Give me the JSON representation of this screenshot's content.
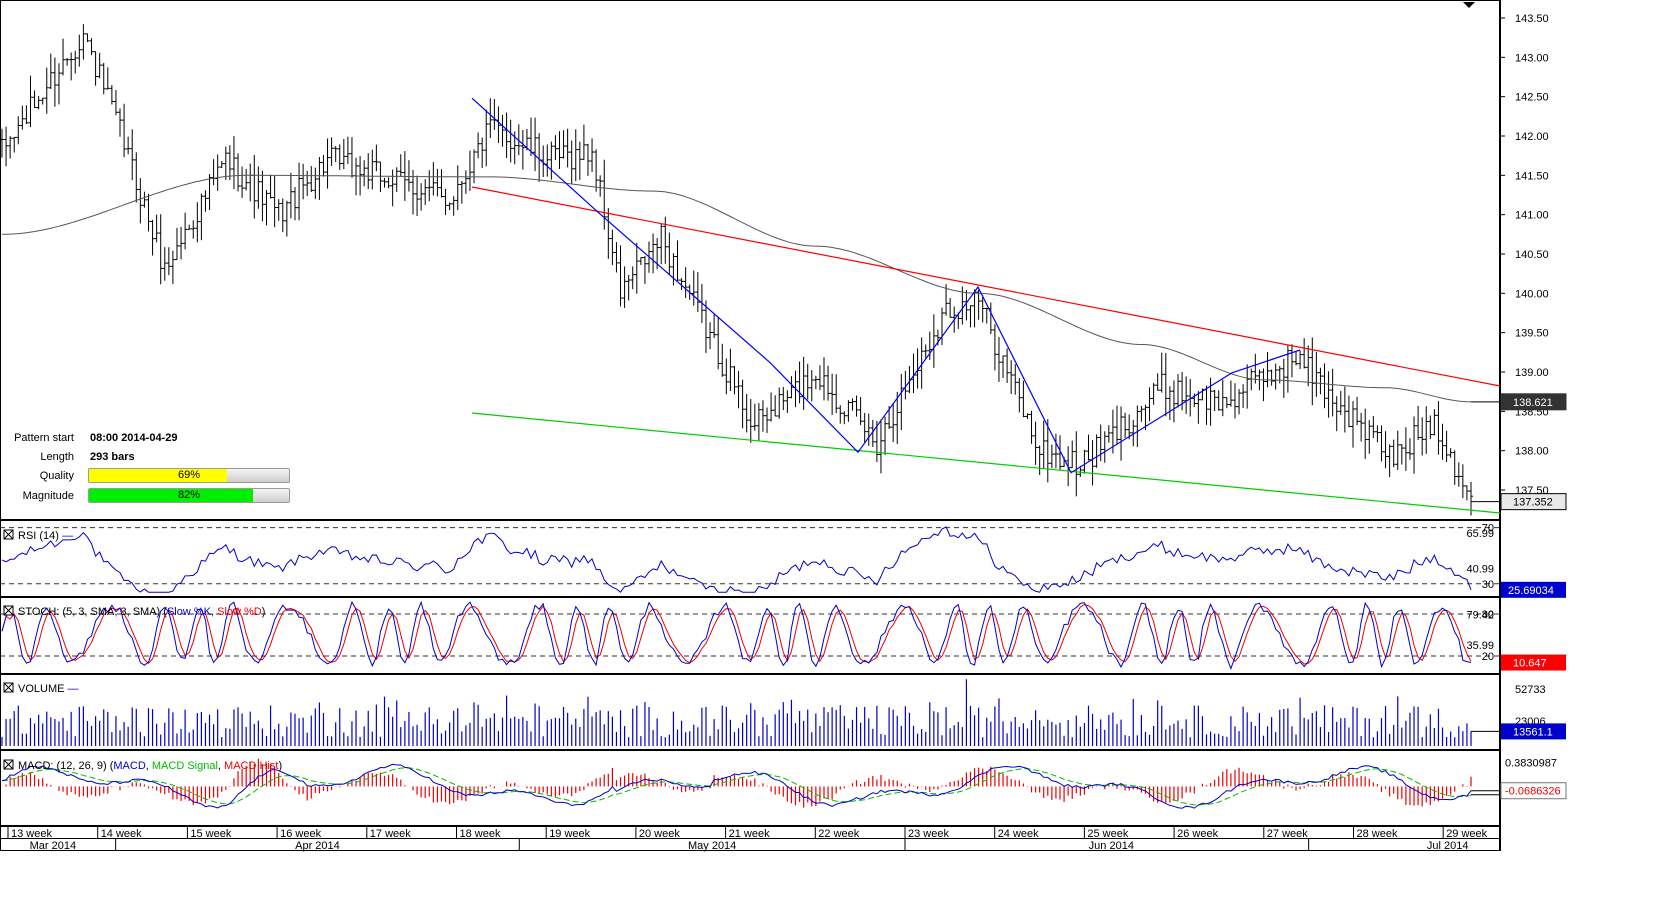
{
  "pattern_info": {
    "rows": [
      {
        "label": "Pattern start",
        "value": "08:00 2014-04-29"
      },
      {
        "label": "Length",
        "value": "293 bars"
      }
    ],
    "quality": {
      "label": "Quality",
      "text": "69%",
      "value": 0.69,
      "color": "#ffff00"
    },
    "magnitude": {
      "label": "Magnitude",
      "text": "82%",
      "value": 0.82,
      "color": "#00ee00"
    }
  },
  "chart_data": [
    {
      "type": "ohlc",
      "panel": "price",
      "y_ticks": [
        "143.50",
        "143.00",
        "142.50",
        "142.00",
        "141.50",
        "141.00",
        "140.50",
        "140.00",
        "139.50",
        "139.00",
        "138.50",
        "138.00",
        "137.50"
      ],
      "ylim": [
        137.2,
        143.7
      ],
      "last_price": {
        "text": "137.352",
        "value": 137.352
      },
      "ma_label": {
        "text": "138.621",
        "value": 138.621
      },
      "moving_average_color": "#555555",
      "channel_upper": {
        "color": "#ff0000",
        "points": [
          [
            0,
            141.33
          ],
          [
            1,
            138.8
          ]
        ]
      },
      "channel_lower": {
        "color": "#00cc00",
        "points": [
          [
            0,
            138.5
          ],
          [
            1,
            137.05
          ]
        ]
      },
      "zigzag": {
        "color": "#0000ff",
        "points": [
          [
            "2014-04-29",
            142.48
          ],
          [
            "2014-05-08",
            141.02
          ],
          [
            "2014-05-13",
            139.12
          ],
          [
            "2014-05-19",
            137.98
          ],
          [
            "2014-05-26",
            140.08
          ],
          [
            "2014-05-31",
            137.72
          ],
          [
            "2014-06-12",
            138.99
          ],
          [
            "2014-06-19",
            139.28
          ]
        ]
      },
      "anchors": [
        {
          "bar": 0,
          "close": 141.8
        },
        {
          "bar": 20,
          "close": 143.3
        },
        {
          "bar": 30,
          "close": 141.9
        },
        {
          "bar": 40,
          "close": 140.3
        },
        {
          "bar": 55,
          "close": 141.7
        },
        {
          "bar": 68,
          "close": 141.0
        },
        {
          "bar": 80,
          "close": 141.7
        },
        {
          "bar": 98,
          "close": 141.4
        },
        {
          "bar": 110,
          "close": 141.2
        },
        {
          "bar": 120,
          "close": 142.1
        },
        {
          "bar": 135,
          "close": 141.7
        },
        {
          "bar": 145,
          "close": 141.8
        },
        {
          "bar": 152,
          "close": 140.0
        },
        {
          "bar": 162,
          "close": 140.7
        },
        {
          "bar": 185,
          "close": 138.3
        },
        {
          "bar": 200,
          "close": 139.0
        },
        {
          "bar": 215,
          "close": 138.1
        },
        {
          "bar": 232,
          "close": 139.8
        },
        {
          "bar": 240,
          "close": 139.9
        },
        {
          "bar": 255,
          "close": 138.0
        },
        {
          "bar": 265,
          "close": 137.8
        },
        {
          "bar": 285,
          "close": 138.8
        },
        {
          "bar": 300,
          "close": 138.6
        },
        {
          "bar": 318,
          "close": 139.2
        },
        {
          "bar": 330,
          "close": 138.5
        },
        {
          "bar": 342,
          "close": 137.9
        },
        {
          "bar": 352,
          "close": 138.4
        },
        {
          "bar": 361,
          "close": 137.4
        }
      ],
      "ma_points": [
        [
          0,
          140.75
        ],
        [
          60,
          141.5
        ],
        [
          120,
          141.48
        ],
        [
          160,
          141.3
        ],
        [
          200,
          140.6
        ],
        [
          240,
          140.0
        ],
        [
          280,
          139.35
        ],
        [
          310,
          138.9
        ],
        [
          340,
          138.8
        ],
        [
          361,
          138.62
        ]
      ]
    },
    {
      "type": "line",
      "panel": "rsi",
      "title": "RSI (14)",
      "y_ticks": [
        "70",
        "65.99",
        "40.99",
        "30"
      ],
      "ylim": [
        22,
        74
      ],
      "levels": [
        70,
        30
      ],
      "last": {
        "text": "25.69034",
        "value": 25.69034
      },
      "series": [
        {
          "name": "RSI",
          "color": "#0000cc"
        }
      ]
    },
    {
      "type": "line",
      "panel": "stoch",
      "title": "STOCH: (5, 3, SMA, 3, SMA)",
      "y_ticks": [
        "80",
        "79.42",
        "35.99",
        "20"
      ],
      "ylim": [
        0,
        100
      ],
      "levels": [
        80,
        20
      ],
      "last": {
        "text": "10.647",
        "value": 10.647
      },
      "series": [
        {
          "name": "Slow %K",
          "color": "#0000cc"
        },
        {
          "name": "Slow %D",
          "color": "#ee0000"
        }
      ]
    },
    {
      "type": "bar",
      "panel": "volume",
      "title": "VOLUME",
      "y_ticks": [
        "52733",
        "23006"
      ],
      "ylim": [
        0,
        65000
      ],
      "last": {
        "text": "13561.1",
        "value": 13561.1
      },
      "series": [
        {
          "name": "VOLUME",
          "color": "#0000cc"
        }
      ]
    },
    {
      "type": "line",
      "panel": "macd",
      "title": "MACD: (12, 26, 9)",
      "y_ticks": [
        "0.3830987",
        "-0.0686326"
      ],
      "ylim": [
        -0.6,
        0.55
      ],
      "last": {
        "text": "-0.0686326",
        "value": -0.0686326
      },
      "series": [
        {
          "name": "MACD",
          "color": "#0000cc"
        },
        {
          "name": "MACD Signal",
          "color": "#00bb00"
        },
        {
          "name": "MACD Hist",
          "color": "#ee0000"
        }
      ]
    }
  ],
  "x_axis": {
    "weeks": [
      "13 week",
      "14 week",
      "15 week",
      "16 week",
      "17 week",
      "18 week",
      "19 week",
      "20 week",
      "21 week",
      "22 week",
      "23 week",
      "24 week",
      "25 week",
      "26 week",
      "27 week",
      "28 week",
      "29 week"
    ],
    "months": [
      {
        "label": "Mar 2014",
        "center_week": 0.5
      },
      {
        "label": "Apr 2014",
        "center_week": 3.45
      },
      {
        "label": "May 2014",
        "center_week": 7.85
      },
      {
        "label": "Jun 2014",
        "center_week": 12.3
      },
      {
        "label": "Jul 2014",
        "center_week": 16.05
      }
    ],
    "month_boundaries": [
      1.2,
      5.7,
      10.0,
      14.5
    ]
  },
  "colors": {
    "axis": "#000000",
    "grid_dash": "#333333",
    "label_box": "#333333",
    "rsi_box": "#0000cc",
    "stoch_box": "#ff0000",
    "vol_box": "#0000cc"
  }
}
